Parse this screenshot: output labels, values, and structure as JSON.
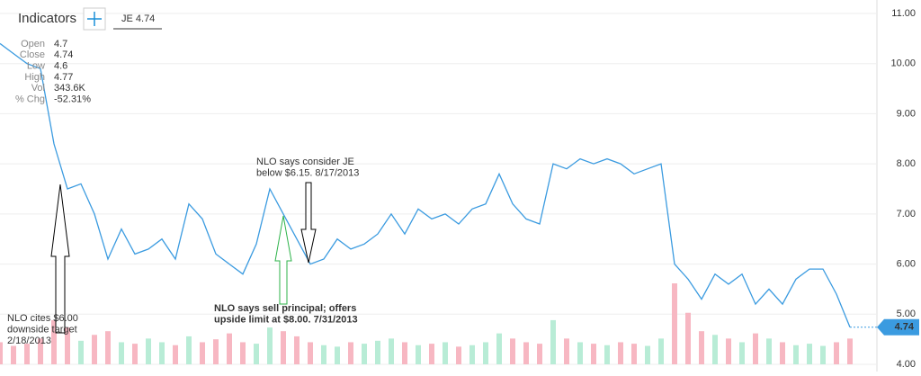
{
  "header": {
    "title": "Indicators",
    "tab": "JE 4.74"
  },
  "info": [
    {
      "label": "Open",
      "value": "4.7"
    },
    {
      "label": "Close",
      "value": "4.74"
    },
    {
      "label": "Low",
      "value": "4.6"
    },
    {
      "label": "High",
      "value": "4.77"
    },
    {
      "label": "Vol",
      "value": "343.6K"
    },
    {
      "label": "% Chg",
      "value": "-52.31%"
    }
  ],
  "chart_data": {
    "type": "line",
    "color": "#3b9be0",
    "last_label": "4.74",
    "values": [
      10.4,
      10.2,
      10.0,
      9.9,
      8.4,
      7.5,
      7.6,
      7.0,
      6.1,
      6.7,
      6.2,
      6.3,
      6.5,
      6.1,
      7.2,
      6.9,
      6.2,
      6.0,
      5.8,
      6.4,
      7.5,
      7.0,
      6.5,
      6.0,
      6.1,
      6.5,
      6.3,
      6.4,
      6.6,
      7.0,
      6.6,
      7.1,
      6.9,
      7.0,
      6.8,
      7.1,
      7.2,
      7.8,
      7.2,
      6.9,
      6.8,
      8.0,
      7.9,
      8.1,
      8.0,
      8.1,
      8.0,
      7.8,
      7.9,
      8.0,
      6.0,
      5.7,
      5.3,
      5.8,
      5.6,
      5.8,
      5.2,
      5.5,
      5.2,
      5.7,
      5.9,
      5.9,
      5.4,
      4.74
    ],
    "volume": [
      300000,
      250000,
      280000,
      350000,
      600000,
      500000,
      320000,
      400000,
      450000,
      300000,
      280000,
      350000,
      300000,
      260000,
      380000,
      300000,
      340000,
      420000,
      300000,
      280000,
      500000,
      450000,
      380000,
      300000,
      260000,
      240000,
      300000,
      280000,
      320000,
      350000,
      300000,
      260000,
      280000,
      300000,
      240000,
      260000,
      300000,
      420000,
      350000,
      300000,
      280000,
      600000,
      350000,
      300000,
      280000,
      260000,
      300000,
      280000,
      250000,
      350000,
      1100000,
      700000,
      450000,
      400000,
      350000,
      300000,
      420000,
      350000,
      300000,
      260000,
      280000,
      250000,
      300000,
      350000
    ],
    "up_color": "#b8ecd6",
    "down_color": "#f7b7c2",
    "ylim": [
      4,
      11
    ],
    "yticks": [
      {
        "value": 4,
        "label": "4.00"
      },
      {
        "value": 5,
        "label": "5.00"
      },
      {
        "value": 6,
        "label": "6.00"
      },
      {
        "value": 7,
        "label": "7.00"
      },
      {
        "value": 8,
        "label": "8.00"
      },
      {
        "value": 9,
        "label": "9.00"
      },
      {
        "value": 10,
        "label": "10.00"
      },
      {
        "value": 11,
        "label": "11.00"
      }
    ],
    "grid": true,
    "annotations": [
      {
        "lines": [
          "NLO cites $6.00",
          "downside target",
          "2/18/2013"
        ],
        "color": "#000000"
      },
      {
        "lines": [
          "NLO says sell principal; offers",
          "upside limit at $8.00. 7/31/2013"
        ],
        "color": "#2db34a"
      },
      {
        "lines": [
          "NLO says consider JE",
          "below $6.15. 8/17/2013"
        ],
        "color": "#000000"
      }
    ]
  }
}
